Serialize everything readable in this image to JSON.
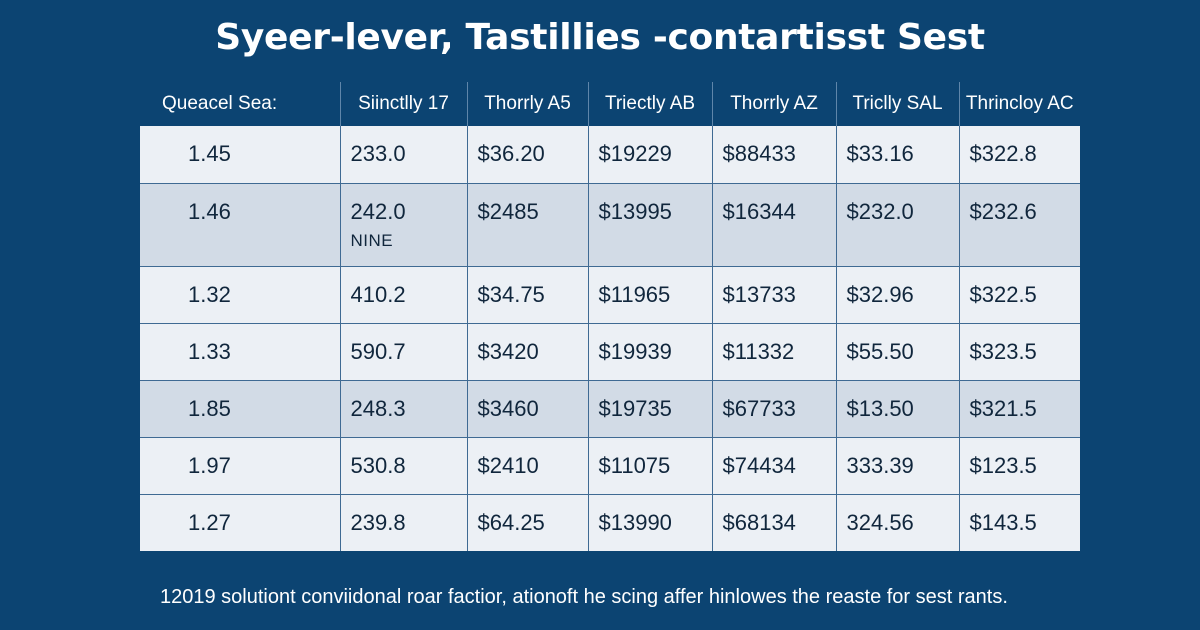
{
  "title": "Syeer-lever, Tastillies -contartisst Sest",
  "footnote": "12019 solutiont conviidonal roar factior, ationoft he scing affer hinlowes the reaste for sest rants.",
  "chart_data": {
    "type": "table",
    "title": "Syeer-lever, Tastillies -contartisst Sest",
    "columns": [
      "Queacel Sea:",
      "Siinctlly 17",
      "Thorrly A5",
      "Triectly AB",
      "Thorrly AZ",
      "Triclly SAL",
      "Thrincloy AC"
    ],
    "rows": [
      {
        "cells": [
          "1.45",
          "233.0",
          "$36.20",
          "$19229",
          "$88433",
          "$33.16",
          "$322.8"
        ],
        "note": ""
      },
      {
        "cells": [
          "1.46",
          "242.0",
          "$2485",
          "$13995",
          "$16344",
          "$232.0",
          "$232.6"
        ],
        "note": "NINE"
      },
      {
        "cells": [
          "1.32",
          "410.2",
          "$34.75",
          "$11965",
          "$13733",
          "$32.96",
          "$322.5"
        ],
        "note": ""
      },
      {
        "cells": [
          "1.33",
          "590.7",
          "$3420",
          "$19939",
          "$11332",
          "$55.50",
          "$323.5"
        ],
        "note": ""
      },
      {
        "cells": [
          "1.85",
          "248.3",
          "$3460",
          "$19735",
          "$67733",
          "$13.50",
          "$321.5"
        ],
        "note": ""
      },
      {
        "cells": [
          "1.97",
          "530.8",
          "$2410",
          "$11075",
          "$74434",
          "333.39",
          "$123.5"
        ],
        "note": ""
      },
      {
        "cells": [
          "1.27",
          "239.8",
          "$64.25",
          "$13990",
          "$68134",
          "324.56",
          "$143.5"
        ],
        "note": ""
      }
    ]
  }
}
